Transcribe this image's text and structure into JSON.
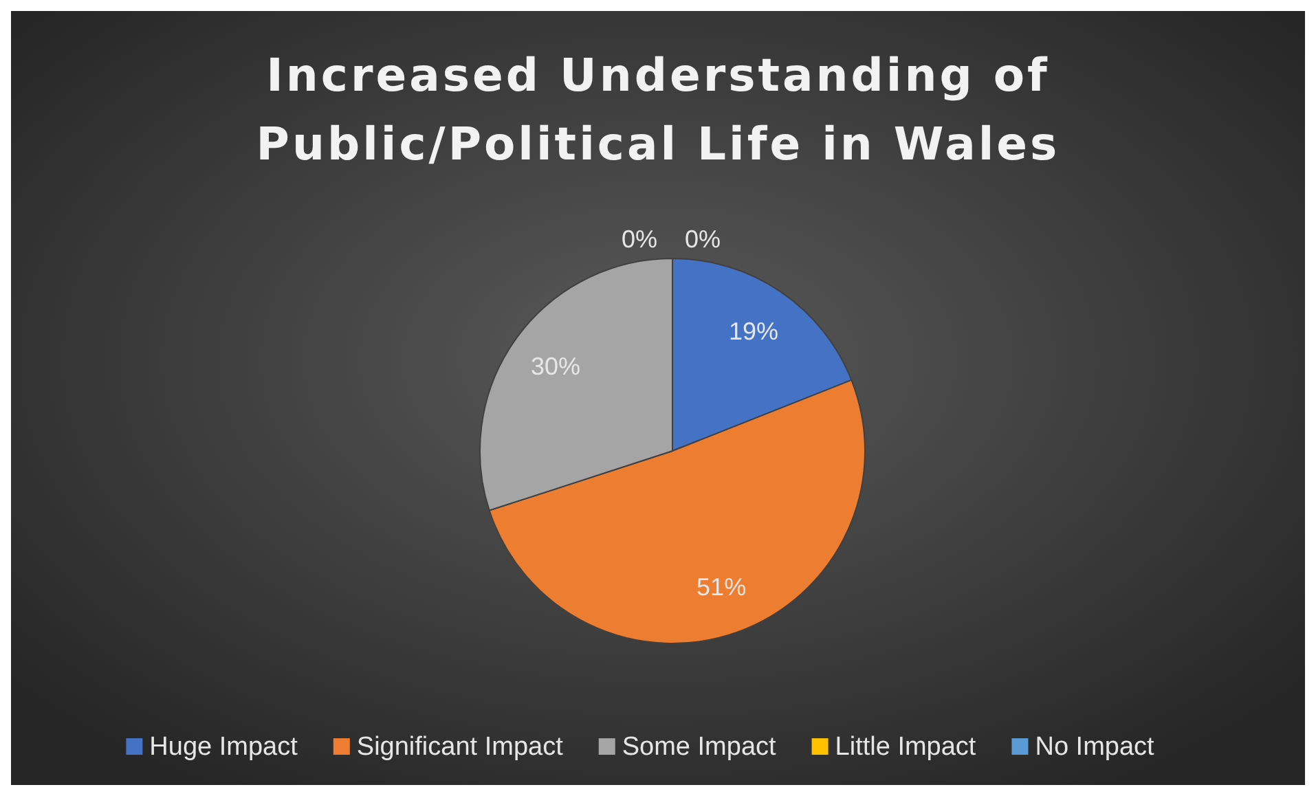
{
  "chart_data": {
    "type": "pie",
    "title": "Increased Understanding of Public/Political Life in Wales",
    "categories": [
      "Huge Impact",
      "Significant Impact",
      "Some Impact",
      "Little Impact",
      "No Impact"
    ],
    "values": [
      19,
      51,
      30,
      0,
      0
    ],
    "colors": [
      "#4472c4",
      "#ed7d31",
      "#a5a5a5",
      "#ffc000",
      "#5b9bd5"
    ],
    "data_labels": true,
    "value_labels": [
      "19%",
      "51%",
      "30%",
      "0%",
      "0%"
    ],
    "legend": "bottom"
  }
}
